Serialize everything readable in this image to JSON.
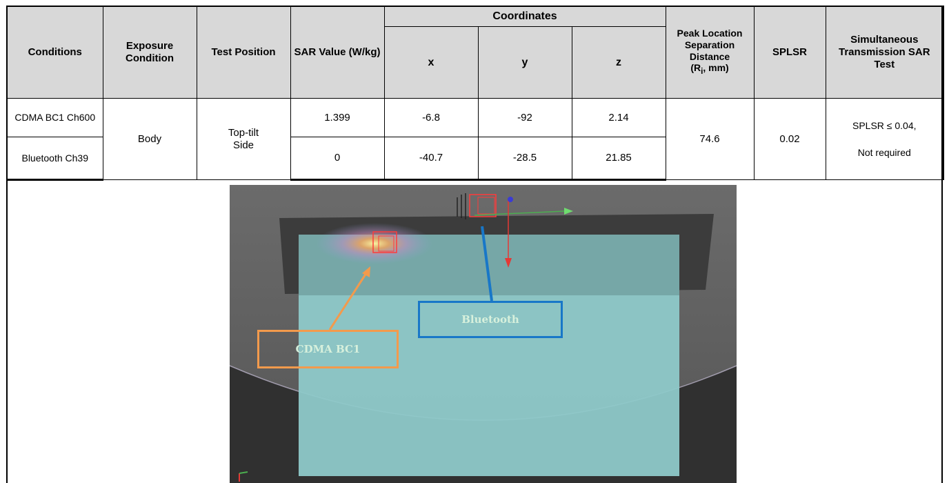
{
  "table": {
    "headers": {
      "conditions": "Conditions",
      "exposure_condition": "Exposure Condition",
      "test_position": "Test Position",
      "sar_value": "SAR Value (W/kg)",
      "coordinates": "Coordinates",
      "x": "x",
      "y": "y",
      "z": "z",
      "peak_prefix": "Peak Location Separation Distance",
      "peak_r": "R",
      "peak_sub": "i",
      "peak_unit": ", mm",
      "splsr": "SPLSR",
      "simultaneous": "Simultaneous Transmission SAR Test"
    },
    "rows": [
      {
        "condition": "CDMA BC1 Ch600",
        "sar": "1.399",
        "x": "-6.8",
        "y": "-92",
        "z": "2.14"
      },
      {
        "condition": "Bluetooth Ch39",
        "sar": "0",
        "x": "-40.7",
        "y": "-28.5",
        "z": "21.85"
      }
    ],
    "exposure_condition": "Body",
    "test_position": "Top-tilt Side",
    "peak_distance": "74.6",
    "splsr": "0.02",
    "result_line1": "SPLSR ≤ 0.04,",
    "result_line2": "Not required"
  },
  "visualization": {
    "label_cdma": "CDMA BC1",
    "label_bluetooth": "Bluetooth",
    "colors": {
      "cdma_arrow": "#f39a4c",
      "bluetooth_arrow": "#1877c8",
      "phantom": "#8ec9c9",
      "background": "#5a5a5a"
    }
  }
}
